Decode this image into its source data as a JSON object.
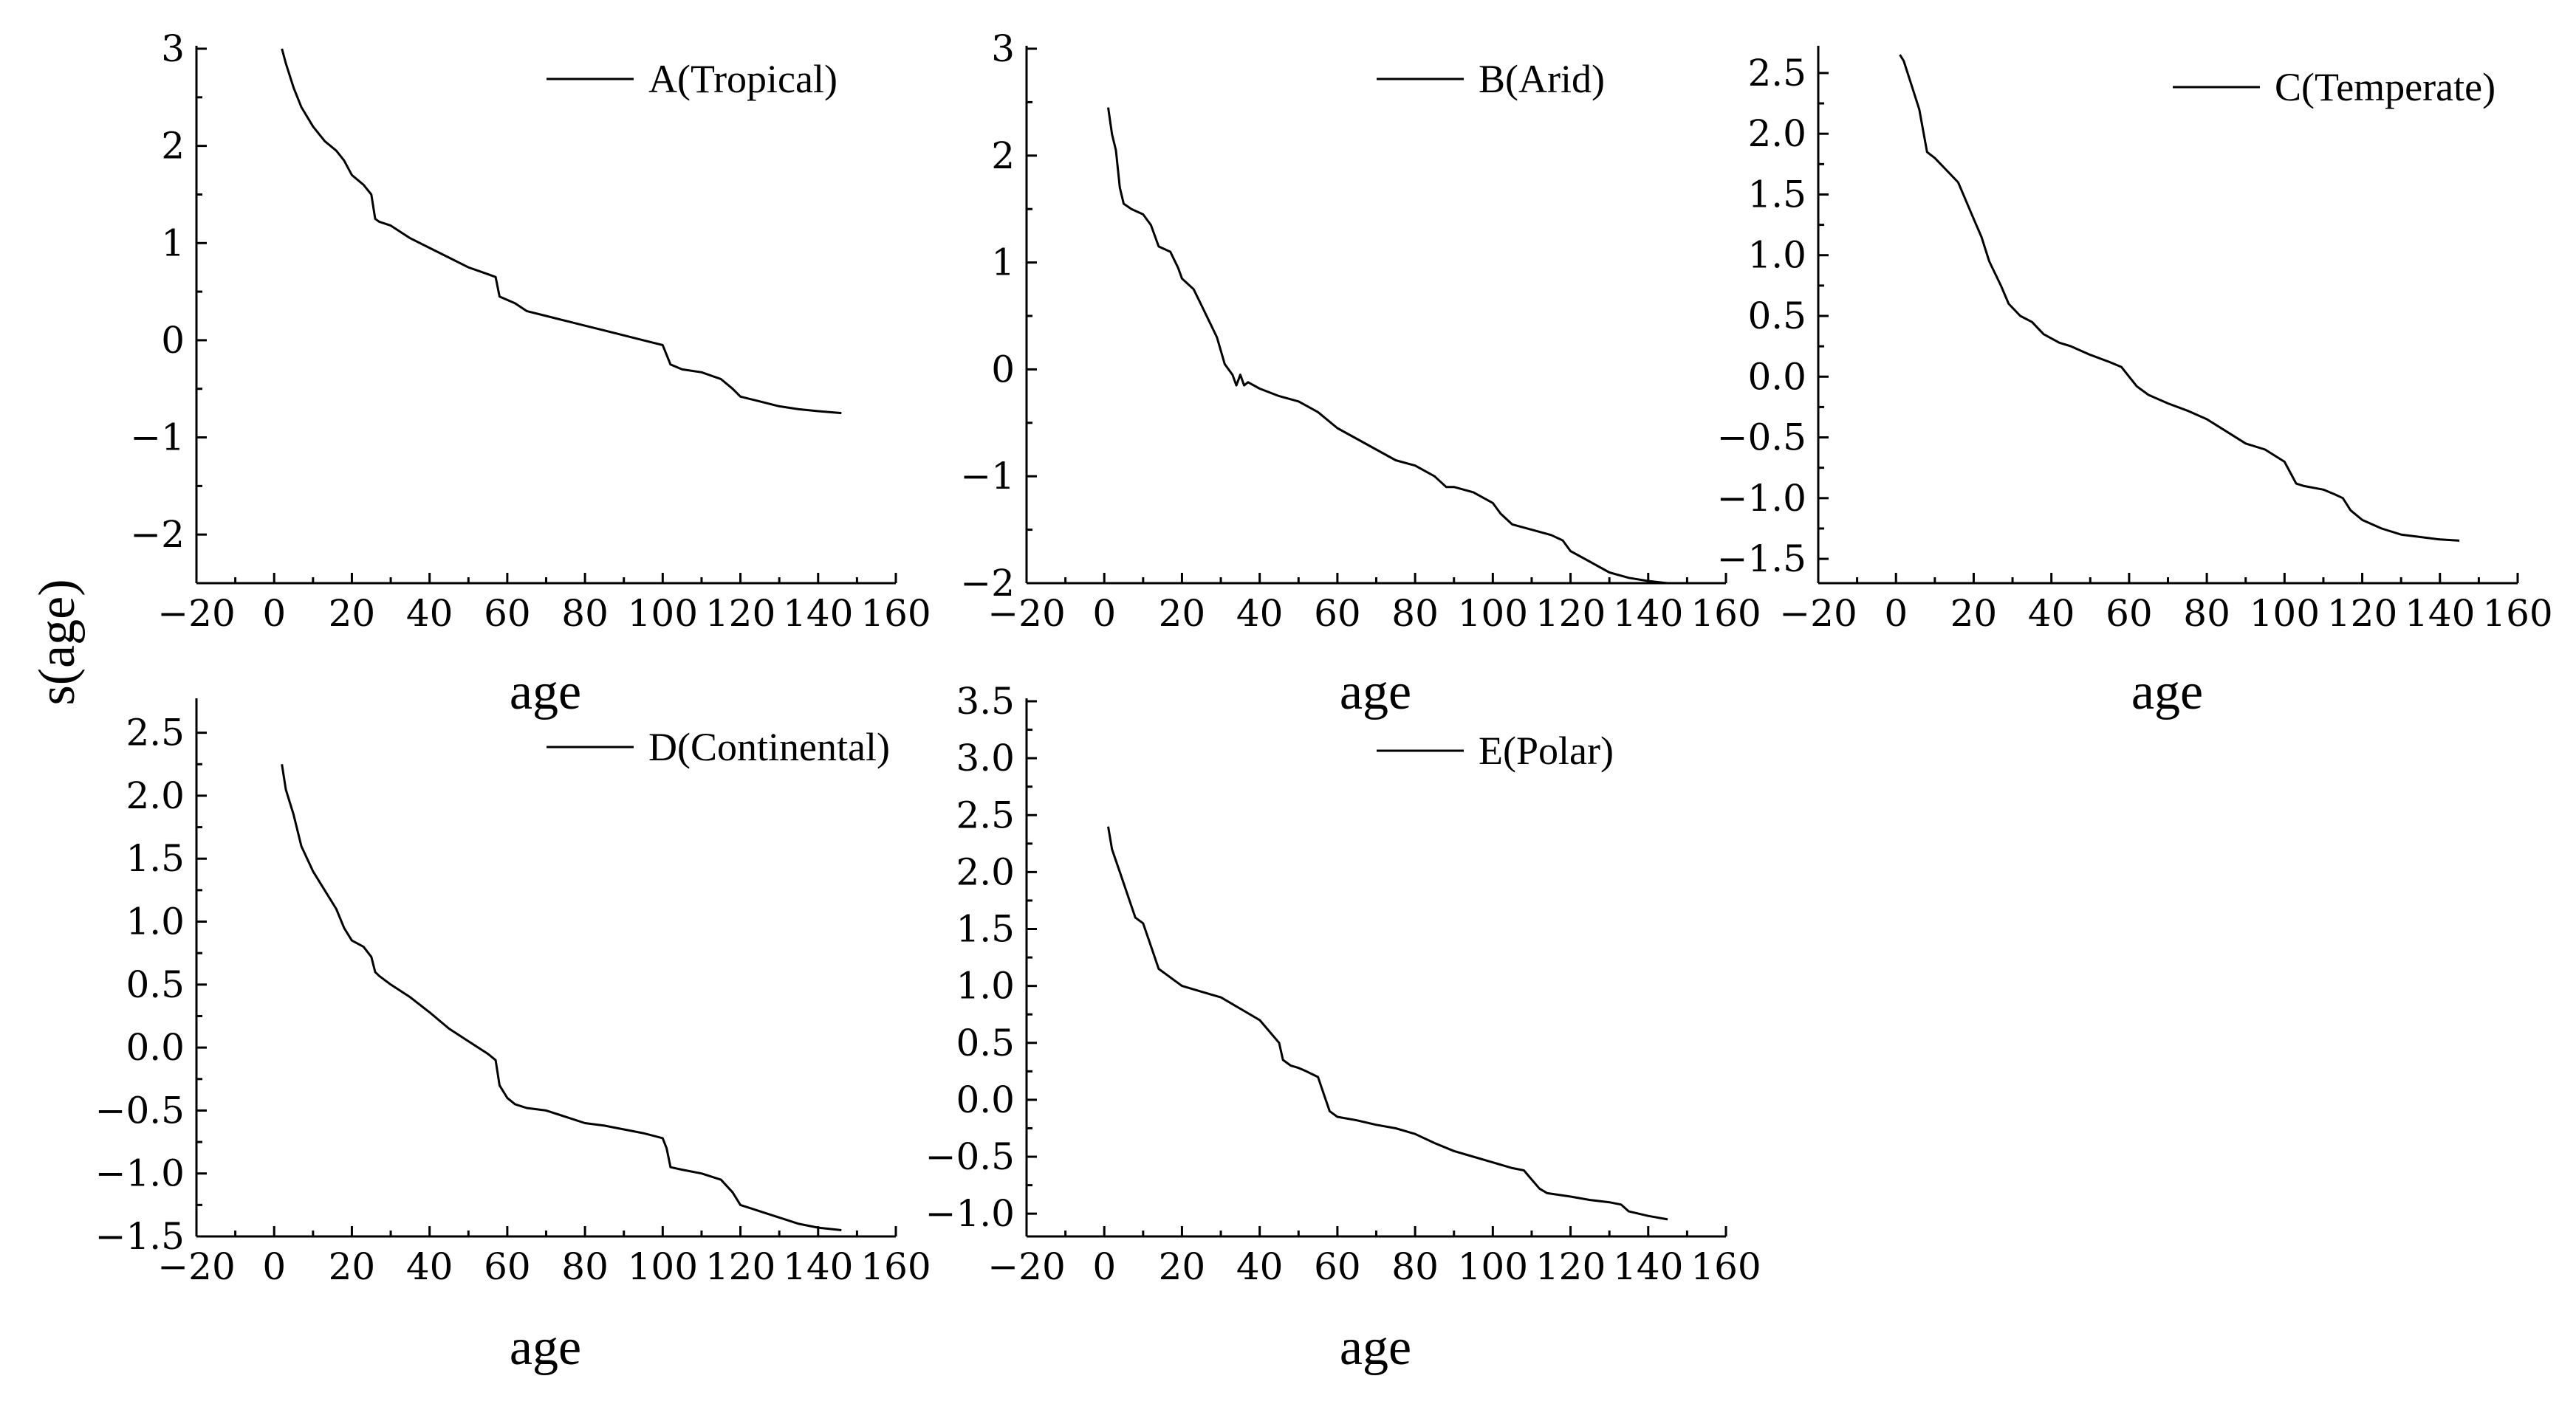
{
  "figure": {
    "ylabel": "s(age)"
  },
  "chart_data": [
    {
      "type": "line",
      "legend": "A(Tropical)",
      "xlabel": "age",
      "xlim": [
        -20,
        160
      ],
      "ylim": [
        -2.5,
        3
      ],
      "xticks": [
        "−20",
        "0",
        "20",
        "40",
        "60",
        "80",
        "100",
        "120",
        "140",
        "160"
      ],
      "yticks": [
        "3",
        "2",
        "1",
        "0",
        "−1",
        "−2"
      ],
      "x": [
        2,
        3,
        5,
        7,
        10,
        13,
        16,
        18,
        20,
        23,
        25,
        26,
        27,
        30,
        35,
        40,
        45,
        50,
        55,
        57,
        58,
        62,
        65,
        70,
        75,
        80,
        85,
        90,
        95,
        100,
        101,
        102,
        105,
        110,
        115,
        118,
        120,
        125,
        130,
        135,
        140,
        146
      ],
      "y": [
        3.0,
        2.85,
        2.6,
        2.4,
        2.2,
        2.05,
        1.95,
        1.85,
        1.7,
        1.6,
        1.5,
        1.25,
        1.22,
        1.18,
        1.05,
        0.95,
        0.85,
        0.75,
        0.68,
        0.65,
        0.45,
        0.38,
        0.3,
        0.25,
        0.2,
        0.15,
        0.1,
        0.05,
        0.0,
        -0.05,
        -0.15,
        -0.25,
        -0.3,
        -0.33,
        -0.4,
        -0.5,
        -0.58,
        -0.63,
        -0.68,
        -0.71,
        -0.73,
        -0.75
      ]
    },
    {
      "type": "line",
      "legend": "B(Arid)",
      "xlabel": "age",
      "xlim": [
        -20,
        160
      ],
      "ylim": [
        -2,
        3
      ],
      "xticks": [
        "−20",
        "0",
        "20",
        "40",
        "60",
        "80",
        "100",
        "120",
        "140",
        "160"
      ],
      "yticks": [
        "3",
        "2",
        "1",
        "0",
        "−1",
        "−2"
      ],
      "x": [
        1,
        2,
        3,
        4,
        5,
        7,
        10,
        12,
        14,
        17,
        19,
        20,
        23,
        25,
        27,
        29,
        31,
        33,
        34,
        35,
        36,
        37,
        40,
        45,
        50,
        55,
        60,
        65,
        70,
        75,
        80,
        85,
        88,
        90,
        95,
        100,
        102,
        105,
        110,
        115,
        118,
        120,
        125,
        130,
        135,
        140,
        145
      ],
      "y": [
        2.45,
        2.2,
        2.05,
        1.7,
        1.55,
        1.5,
        1.45,
        1.35,
        1.15,
        1.1,
        0.95,
        0.85,
        0.75,
        0.6,
        0.45,
        0.3,
        0.05,
        -0.05,
        -0.15,
        -0.05,
        -0.15,
        -0.12,
        -0.18,
        -0.25,
        -0.3,
        -0.4,
        -0.55,
        -0.65,
        -0.75,
        -0.85,
        -0.9,
        -1.0,
        -1.1,
        -1.1,
        -1.15,
        -1.25,
        -1.35,
        -1.45,
        -1.5,
        -1.55,
        -1.6,
        -1.7,
        -1.8,
        -1.9,
        -1.95,
        -1.98,
        -2.0
      ]
    },
    {
      "type": "line",
      "legend": "C(Temperate)",
      "xlabel": "age",
      "xlim": [
        -20,
        160
      ],
      "ylim": [
        -1.7,
        2.7
      ],
      "xticks": [
        "−20",
        "0",
        "20",
        "40",
        "60",
        "80",
        "100",
        "120",
        "140",
        "160"
      ],
      "yticks": [
        "2.5",
        "2.0",
        "1.5",
        "1.0",
        "0.5",
        "0.0",
        "−0.5",
        "−1.0",
        "−1.5"
      ],
      "x": [
        1,
        2,
        4,
        6,
        8,
        10,
        13,
        16,
        18,
        20,
        22,
        24,
        27,
        29,
        32,
        35,
        38,
        42,
        45,
        50,
        55,
        58,
        60,
        62,
        65,
        70,
        75,
        80,
        85,
        90,
        95,
        100,
        103,
        105,
        110,
        113,
        115,
        117,
        120,
        125,
        130,
        135,
        140,
        145
      ],
      "y": [
        2.65,
        2.6,
        2.4,
        2.2,
        1.85,
        1.8,
        1.7,
        1.6,
        1.45,
        1.3,
        1.15,
        0.95,
        0.75,
        0.6,
        0.5,
        0.45,
        0.35,
        0.28,
        0.25,
        0.18,
        0.12,
        0.08,
        0.0,
        -0.08,
        -0.15,
        -0.22,
        -0.28,
        -0.35,
        -0.45,
        -0.55,
        -0.6,
        -0.7,
        -0.88,
        -0.9,
        -0.93,
        -0.97,
        -1.0,
        -1.1,
        -1.18,
        -1.25,
        -1.3,
        -1.32,
        -1.34,
        -1.35
      ]
    },
    {
      "type": "line",
      "legend": "D(Continental)",
      "xlabel": "age",
      "xlim": [
        -20,
        160
      ],
      "ylim": [
        -1.5,
        2.75
      ],
      "xticks": [
        "−20",
        "0",
        "20",
        "40",
        "60",
        "80",
        "100",
        "120",
        "140",
        "160"
      ],
      "yticks": [
        "2.5",
        "2.0",
        "1.5",
        "1.0",
        "0.5",
        "0.0",
        "−0.5",
        "−1.0",
        "−1.5"
      ],
      "x": [
        2,
        3,
        5,
        7,
        10,
        13,
        16,
        18,
        20,
        23,
        25,
        26,
        27,
        30,
        35,
        40,
        45,
        50,
        55,
        57,
        58,
        60,
        62,
        65,
        70,
        75,
        80,
        85,
        90,
        95,
        100,
        101,
        102,
        105,
        110,
        115,
        118,
        120,
        125,
        130,
        135,
        140,
        146
      ],
      "y": [
        2.25,
        2.05,
        1.85,
        1.6,
        1.4,
        1.25,
        1.1,
        0.95,
        0.85,
        0.8,
        0.72,
        0.6,
        0.57,
        0.5,
        0.4,
        0.28,
        0.15,
        0.05,
        -0.05,
        -0.1,
        -0.3,
        -0.4,
        -0.45,
        -0.48,
        -0.5,
        -0.55,
        -0.6,
        -0.62,
        -0.65,
        -0.68,
        -0.72,
        -0.8,
        -0.95,
        -0.97,
        -1.0,
        -1.05,
        -1.15,
        -1.25,
        -1.3,
        -1.35,
        -1.4,
        -1.43,
        -1.45
      ]
    },
    {
      "type": "line",
      "legend": "E(Polar)",
      "xlabel": "age",
      "xlim": [
        -20,
        160
      ],
      "ylim": [
        -1.2,
        3.5
      ],
      "xticks": [
        "−20",
        "0",
        "20",
        "40",
        "60",
        "80",
        "100",
        "120",
        "140",
        "160"
      ],
      "yticks": [
        "3.5",
        "3.0",
        "2.5",
        "2.0",
        "1.5",
        "1.0",
        "0.5",
        "0.0",
        "−0.5",
        "−1.0"
      ],
      "x": [
        1,
        2,
        4,
        6,
        8,
        10,
        12,
        14,
        16,
        18,
        20,
        25,
        30,
        35,
        40,
        45,
        46,
        48,
        50,
        52,
        55,
        57,
        58,
        60,
        65,
        70,
        75,
        80,
        85,
        90,
        95,
        100,
        105,
        108,
        110,
        112,
        114,
        120,
        125,
        130,
        133,
        135,
        140,
        145
      ],
      "y": [
        2.4,
        2.2,
        2.0,
        1.8,
        1.6,
        1.55,
        1.35,
        1.15,
        1.1,
        1.05,
        1.0,
        0.95,
        0.9,
        0.8,
        0.7,
        0.5,
        0.35,
        0.3,
        0.28,
        0.25,
        0.2,
        0.0,
        -0.1,
        -0.15,
        -0.18,
        -0.22,
        -0.25,
        -0.3,
        -0.38,
        -0.45,
        -0.5,
        -0.55,
        -0.6,
        -0.62,
        -0.7,
        -0.78,
        -0.82,
        -0.85,
        -0.88,
        -0.9,
        -0.92,
        -0.98,
        -1.02,
        -1.05
      ]
    }
  ]
}
